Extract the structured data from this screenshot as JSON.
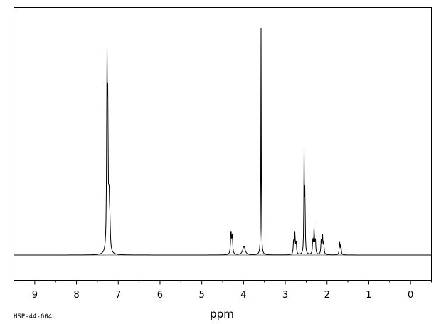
{
  "chart_data": {
    "type": "line",
    "title": "",
    "xlabel": "ppm",
    "ylabel": "",
    "sample_id": "HSP-44-604",
    "x_reversed": true,
    "xlim": [
      9.5,
      -0.5
    ],
    "x_ticks": [
      9,
      8,
      7,
      6,
      5,
      4,
      3,
      2,
      1,
      0
    ],
    "minor_step": 0.5,
    "ylim": [
      0,
      100
    ],
    "grid": false,
    "legend": "none",
    "line_color": "#000000",
    "series": [
      {
        "peaks": [
          {
            "ppm": 7.27,
            "height": 80,
            "width": 0.01
          },
          {
            "ppm": 7.25,
            "height": 56,
            "width": 0.01
          },
          {
            "ppm": 7.22,
            "height": 21,
            "width": 0.012
          },
          {
            "ppm": 7.2,
            "height": 10,
            "width": 0.012
          },
          {
            "ppm": 4.3,
            "height": 10,
            "width": 0.012
          },
          {
            "ppm": 4.27,
            "height": 8,
            "width": 0.012
          },
          {
            "ppm": 3.99,
            "height": 3.8,
            "width": 0.035
          },
          {
            "ppm": 3.58,
            "height": 100,
            "width": 0.006
          },
          {
            "ppm": 2.8,
            "height": 6.5,
            "width": 0.01
          },
          {
            "ppm": 2.77,
            "height": 9,
            "width": 0.01
          },
          {
            "ppm": 2.74,
            "height": 5.5,
            "width": 0.01
          },
          {
            "ppm": 2.55,
            "height": 43,
            "width": 0.007
          },
          {
            "ppm": 2.53,
            "height": 27,
            "width": 0.008
          },
          {
            "ppm": 2.34,
            "height": 6.5,
            "width": 0.01
          },
          {
            "ppm": 2.31,
            "height": 11,
            "width": 0.01
          },
          {
            "ppm": 2.28,
            "height": 6.5,
            "width": 0.01
          },
          {
            "ppm": 2.14,
            "height": 6,
            "width": 0.01
          },
          {
            "ppm": 2.11,
            "height": 9,
            "width": 0.01
          },
          {
            "ppm": 2.08,
            "height": 5,
            "width": 0.01
          },
          {
            "ppm": 1.7,
            "height": 5.5,
            "width": 0.01
          },
          {
            "ppm": 1.67,
            "height": 4.5,
            "width": 0.01
          }
        ]
      }
    ]
  }
}
